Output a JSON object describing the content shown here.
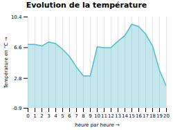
{
  "chart_data": {
    "type": "area",
    "title": "Evolution de la température",
    "xlabel": "heure par heure",
    "ylabel": "Température en °C",
    "x": [
      0,
      1,
      2,
      3,
      4,
      5,
      6,
      7,
      8,
      9,
      10,
      11,
      12,
      13,
      14,
      15,
      16,
      17,
      18,
      19,
      20
    ],
    "values": [
      7.0,
      7.0,
      6.8,
      7.3,
      7.1,
      6.4,
      5.5,
      4.2,
      3.1,
      3.1,
      6.7,
      6.6,
      6.6,
      7.4,
      8.1,
      9.5,
      9.2,
      8.3,
      6.8,
      3.8,
      1.8
    ],
    "color": "#55bbcc",
    "xlim": [
      0,
      20
    ],
    "xticks": [
      0,
      1,
      2,
      3,
      4,
      5,
      6,
      7,
      8,
      9,
      10,
      11,
      12,
      13,
      14,
      15,
      16,
      17,
      18,
      19,
      20
    ],
    "ylim": [
      -0.9,
      10.4
    ],
    "yticks": [
      -0.9,
      2.8,
      6.6,
      10.4
    ],
    "grid": "x"
  }
}
